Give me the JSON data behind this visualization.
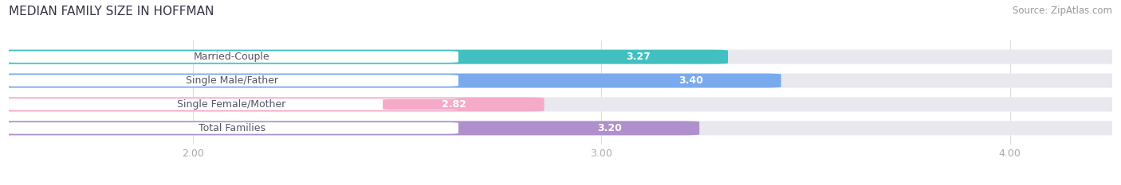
{
  "title": "MEDIAN FAMILY SIZE IN HOFFMAN",
  "source": "Source: ZipAtlas.com",
  "categories": [
    "Married-Couple",
    "Single Male/Father",
    "Single Female/Mother",
    "Total Families"
  ],
  "values": [
    3.27,
    3.4,
    2.82,
    3.2
  ],
  "bar_colors": [
    "#40c0c0",
    "#7aaaee",
    "#f5aac8",
    "#b090cc"
  ],
  "label_pill_colors": [
    "#40c0c0",
    "#7aaaee",
    "#f5aac8",
    "#b090cc"
  ],
  "bar_bg_color": "#e8e8ee",
  "xlim_min": 1.55,
  "xlim_max": 4.25,
  "xticks": [
    2.0,
    3.0,
    4.0
  ],
  "xtick_labels": [
    "2.00",
    "3.00",
    "4.00"
  ],
  "title_fontsize": 11,
  "source_fontsize": 8.5,
  "label_fontsize": 9,
  "value_fontsize": 9,
  "background_color": "#ffffff",
  "bar_height": 0.52
}
